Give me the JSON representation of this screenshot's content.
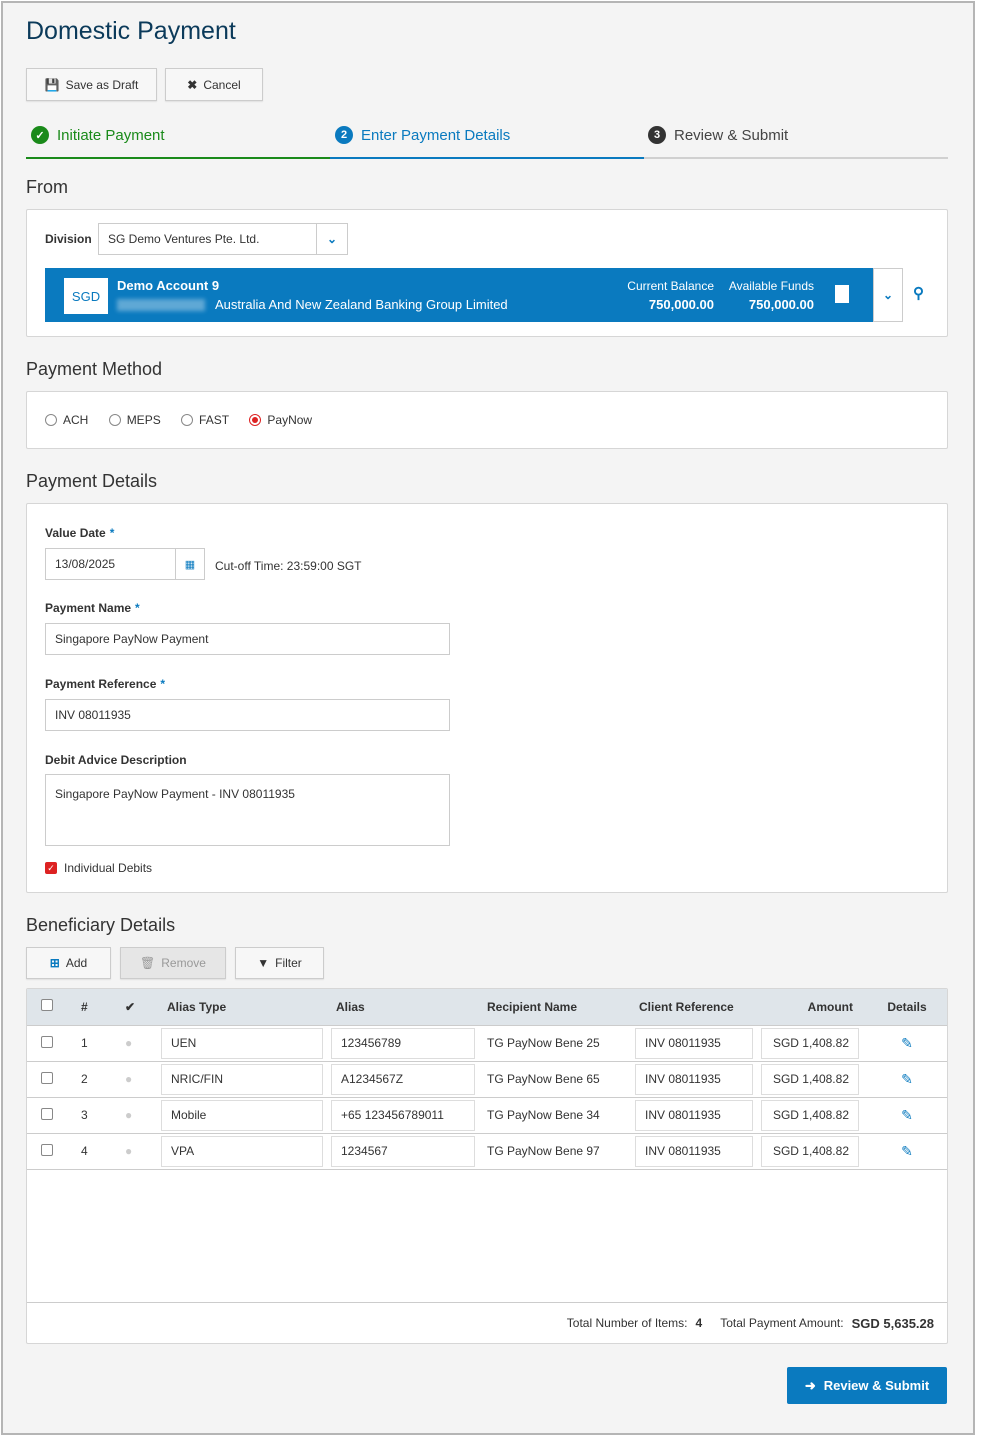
{
  "page": {
    "title": "Domestic Payment"
  },
  "toolbar": {
    "save_label": "Save as Draft",
    "cancel_label": "Cancel"
  },
  "steps": [
    {
      "num": "1",
      "label": "Initiate Payment",
      "state": "complete"
    },
    {
      "num": "2",
      "label": "Enter Payment Details",
      "state": "active"
    },
    {
      "num": "3",
      "label": "Review & Submit",
      "state": "pending"
    }
  ],
  "from": {
    "title": "From",
    "division_label": "Division",
    "division_value": "SG Demo Ventures Pte. Ltd.",
    "account": {
      "currency": "SGD",
      "name": "Demo Account 9",
      "bank": "Australia And New Zealand Banking Group Limited",
      "current_balance_label": "Current Balance",
      "current_balance": "750,000.00",
      "available_funds_label": "Available Funds",
      "available_funds": "750,000.00"
    }
  },
  "method": {
    "title": "Payment Method",
    "options": [
      "ACH",
      "MEPS",
      "FAST",
      "PayNow"
    ],
    "selected": "PayNow"
  },
  "details": {
    "title": "Payment Details",
    "value_date_label": "Value Date",
    "value_date": "13/08/2025",
    "cutoff": "Cut-off Time: 23:59:00 SGT",
    "payment_name_label": "Payment Name",
    "payment_name": "Singapore PayNow Payment",
    "payment_ref_label": "Payment Reference",
    "payment_ref": "INV 08011935",
    "debit_desc_label": "Debit Advice Description",
    "debit_desc": "Singapore PayNow Payment - INV 08011935",
    "individual_debits_label": "Individual Debits",
    "individual_debits": true,
    "required_mark": "*"
  },
  "beneficiary": {
    "title": "Beneficiary Details",
    "add_label": "Add",
    "remove_label": "Remove",
    "filter_label": "Filter",
    "columns": {
      "num": "#",
      "alias_type": "Alias Type",
      "alias": "Alias",
      "recipient": "Recipient Name",
      "client_ref": "Client Reference",
      "amount": "Amount",
      "details": "Details"
    },
    "rows": [
      {
        "num": "1",
        "alias_type": "UEN",
        "alias": "123456789",
        "recipient": "TG PayNow Bene 25",
        "client_ref": "INV 08011935",
        "amount": "SGD 1,408.82"
      },
      {
        "num": "2",
        "alias_type": "NRIC/FIN",
        "alias": "A1234567Z",
        "recipient": "TG PayNow Bene 65",
        "client_ref": "INV 08011935",
        "amount": "SGD 1,408.82"
      },
      {
        "num": "3",
        "alias_type": "Mobile",
        "alias": "+65 123456789011",
        "recipient": "TG PayNow Bene 34",
        "client_ref": "INV 08011935",
        "amount": "SGD 1,408.82"
      },
      {
        "num": "4",
        "alias_type": "VPA",
        "alias": "1234567",
        "recipient": "TG PayNow Bene 97",
        "client_ref": "INV 08011935",
        "amount": "SGD 1,408.82"
      }
    ],
    "total_items_label": "Total Number of Items:",
    "total_items": "4",
    "total_amount_label": "Total Payment Amount:",
    "total_amount": "SGD 5,635.28"
  },
  "footer": {
    "submit_label": "Review & Submit"
  },
  "colors": {
    "primary": "#0a7abf",
    "success": "#1a8a1a",
    "title": "#0b3a5a"
  }
}
